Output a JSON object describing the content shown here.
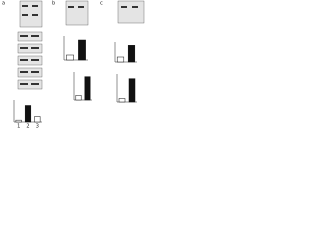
{
  "panels": [
    {
      "label": "a"
    },
    {
      "label": "b"
    },
    {
      "label": "c"
    }
  ],
  "charts": [
    {
      "values": [
        0.25,
        1.0
      ],
      "ylim": [
        0,
        1.2
      ]
    },
    {
      "values": [
        0.2,
        1.0
      ],
      "ylim": [
        0,
        1.2
      ]
    },
    {
      "values": [
        0.3,
        1.0
      ],
      "ylim": [
        0,
        1.2
      ]
    },
    {
      "values": [
        0.15,
        1.0
      ],
      "ylim": [
        0,
        1.2
      ]
    },
    {
      "values": [
        0.1,
        0.9,
        0.3
      ],
      "ylim": [
        0,
        1.2
      ],
      "categories": [
        "1",
        "2",
        "3"
      ]
    }
  ]
}
